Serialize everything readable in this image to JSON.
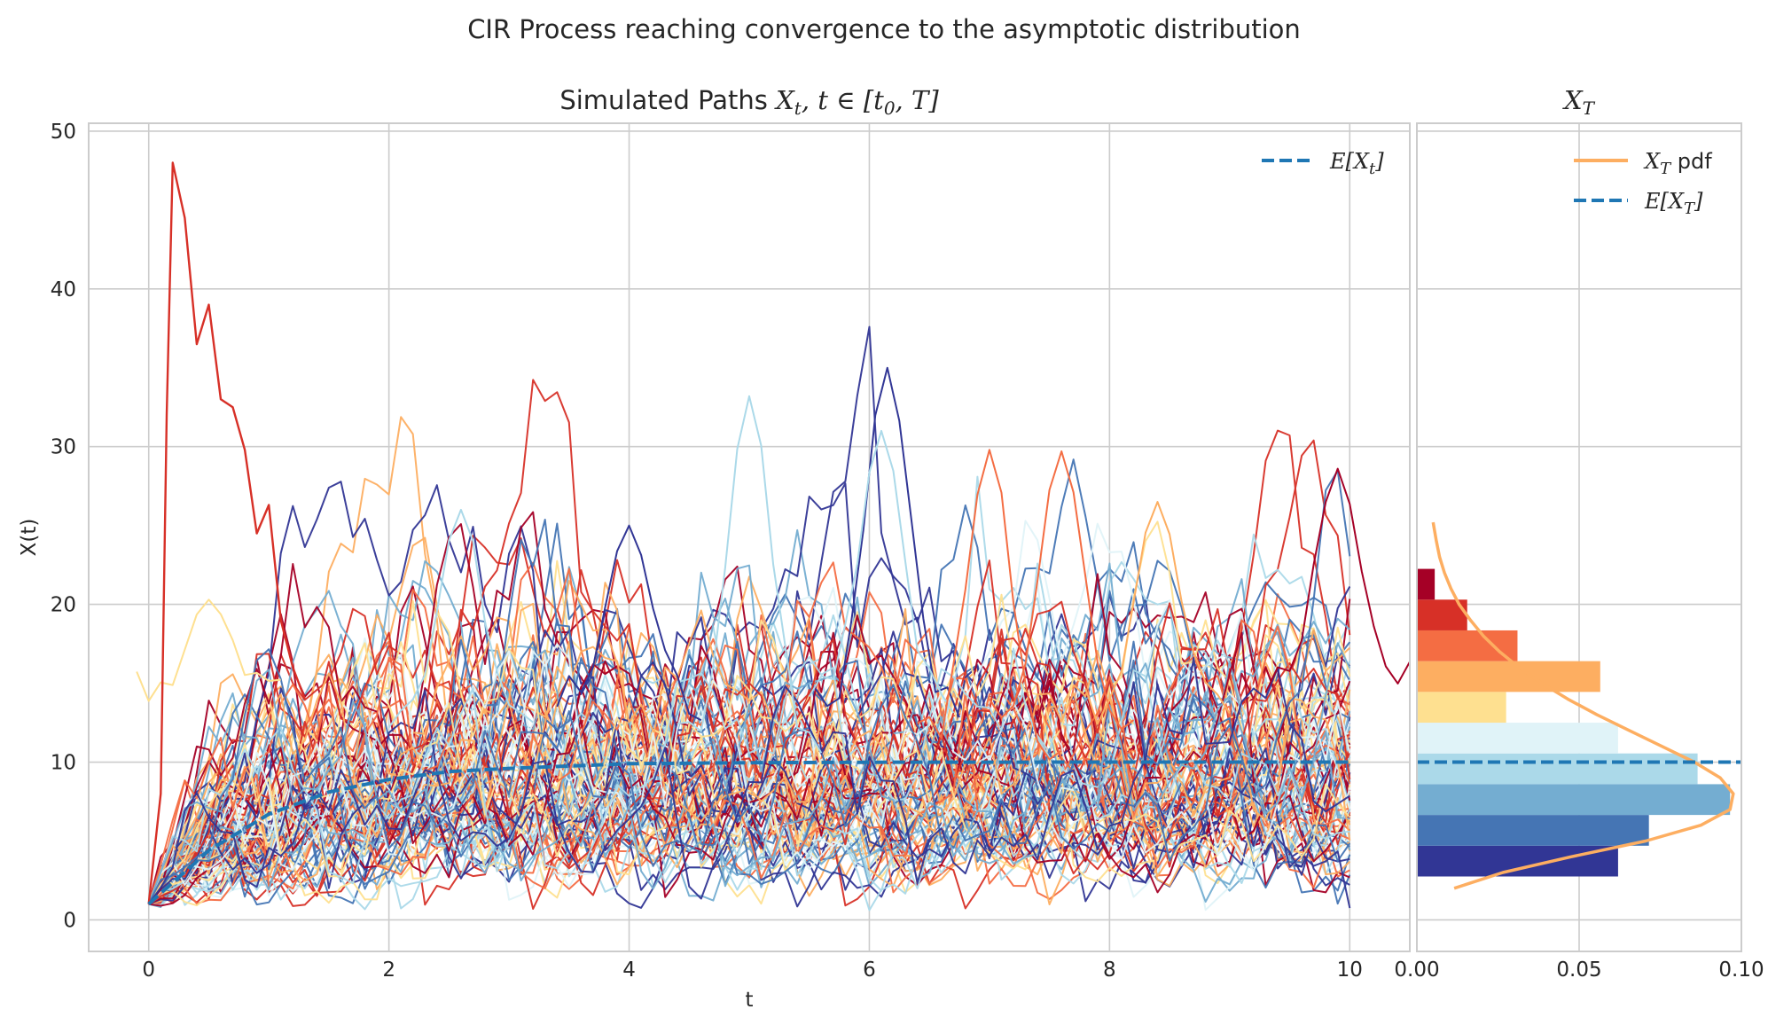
{
  "figure": {
    "suptitle": "CIR Process reaching convergence to the asymptotic distribution"
  },
  "colors": {
    "mean_line": "#1f77b4",
    "pdf_line": "#fdae61",
    "grid": "#cccccc",
    "palette_RdYlBu": [
      "#a50026",
      "#d73027",
      "#f46d43",
      "#fdae61",
      "#fee090",
      "#e0f3f8",
      "#abd9e9",
      "#74add1",
      "#4575b4",
      "#313695"
    ]
  },
  "chart_data": [
    {
      "id": "paths",
      "type": "line",
      "title_prefix": "Simulated Paths ",
      "title_math": "X",
      "title_math_sub": "t",
      "title_rest": ", t ∈ [t",
      "title_sub0": "0",
      "title_end": ", T]",
      "xlabel": "t",
      "ylabel": "X(t)",
      "xlim": [
        -0.5,
        10.5
      ],
      "ylim": [
        -2,
        50.5
      ],
      "xticks": [
        "0",
        "2",
        "4",
        "6",
        "8",
        "10"
      ],
      "yticks": [
        "0",
        "10",
        "20",
        "30",
        "40",
        "50"
      ],
      "grid": true,
      "legend_placement": "top-right",
      "legend": [
        {
          "label_math": "E[X",
          "label_sub": "t",
          "label_end": "]",
          "style": "dashed",
          "color": "#1f77b4"
        }
      ],
      "process": {
        "x0": 1,
        "long_run_mean": 10,
        "t_start": 0,
        "t_end": 10,
        "n_paths": 100
      },
      "mean_curve": {
        "t": [
          0,
          0.5,
          1,
          1.5,
          2,
          2.5,
          3,
          4,
          5,
          6,
          8,
          10
        ],
        "values": [
          1.0,
          4.4,
          6.7,
          8.1,
          8.9,
          9.4,
          9.6,
          9.9,
          9.96,
          9.99,
          10.0,
          10.0
        ]
      },
      "highlight_path": {
        "t": [
          0,
          0.1,
          0.15,
          0.2,
          0.3,
          0.4,
          0.5,
          0.6,
          0.7,
          0.8,
          0.9,
          1.0,
          1.1,
          1.2,
          1.3
        ],
        "values": [
          1,
          8,
          32,
          48,
          44.5,
          36.5,
          39,
          33,
          32.5,
          29.8,
          24.5,
          26.3,
          19,
          16,
          14
        ]
      },
      "peaks": [
        {
          "t": 5.0,
          "value": 33.2,
          "color": "#abd9e9"
        },
        {
          "t": 6.15,
          "value": 35,
          "color": "#313695"
        },
        {
          "t": 6.1,
          "value": 31,
          "color": "#abd9e9"
        },
        {
          "t": 7.0,
          "value": 29.8,
          "color": "#f46d43"
        },
        {
          "t": 7.6,
          "value": 29.7,
          "color": "#f46d43"
        },
        {
          "t": 9.9,
          "value": 28.6,
          "color": "#a50026"
        },
        {
          "t": 2.6,
          "value": 26,
          "color": "#abd9e9"
        },
        {
          "t": 8.4,
          "value": 26.5,
          "color": "#fdae61"
        },
        {
          "t": 0.5,
          "value": 20.3,
          "color": "#fee090"
        },
        {
          "t": 4.0,
          "value": 25,
          "color": "#313695"
        }
      ]
    },
    {
      "id": "terminal",
      "type": "bar",
      "orientation": "horizontal",
      "title_math": "X",
      "title_math_sub": "T",
      "xlim": [
        0,
        0.1
      ],
      "ylim": [
        -2,
        50.5
      ],
      "xticks": [
        "0.00",
        "0.05",
        "0.10"
      ],
      "grid": true,
      "legend_placement": "top-right",
      "legend": [
        {
          "label_math": "X",
          "label_sub": "T",
          "label_end": " pdf",
          "style": "solid",
          "color": "#fdae61"
        },
        {
          "label_math": "E[X",
          "label_sub": "T",
          "label_end": "]",
          "style": "dashed",
          "color": "#1f77b4"
        }
      ],
      "bins": {
        "edges": [
          2.75,
          4.7,
          6.65,
          8.6,
          10.55,
          12.5,
          14.45,
          16.4,
          18.35,
          20.3,
          22.25
        ],
        "density": [
          0.062,
          0.0715,
          0.0965,
          0.0865,
          0.062,
          0.0275,
          0.0565,
          0.031,
          0.0155,
          0.0055
        ],
        "colors": [
          "#313695",
          "#4575b4",
          "#74add1",
          "#abd9e9",
          "#e0f3f8",
          "#fee090",
          "#fdae61",
          "#f46d43",
          "#d73027",
          "#a50026"
        ]
      },
      "pdf_curve": {
        "x": [
          2.0,
          3.0,
          4.0,
          5.0,
          6.0,
          7.0,
          8.0,
          9.0,
          10.0,
          11.0,
          12.0,
          13.0,
          14.0,
          15.0,
          16.0,
          17.0,
          18.0,
          19.0,
          20.0,
          21.0,
          22.0,
          23.0,
          24.0,
          25.2
        ],
        "density": [
          0.0115,
          0.0265,
          0.0475,
          0.0705,
          0.0875,
          0.0965,
          0.0975,
          0.0935,
          0.0855,
          0.0755,
          0.0655,
          0.0555,
          0.0465,
          0.0385,
          0.0315,
          0.0255,
          0.0205,
          0.0165,
          0.013,
          0.0105,
          0.0085,
          0.007,
          0.006,
          0.005
        ]
      },
      "mean_value": 10
    }
  ]
}
